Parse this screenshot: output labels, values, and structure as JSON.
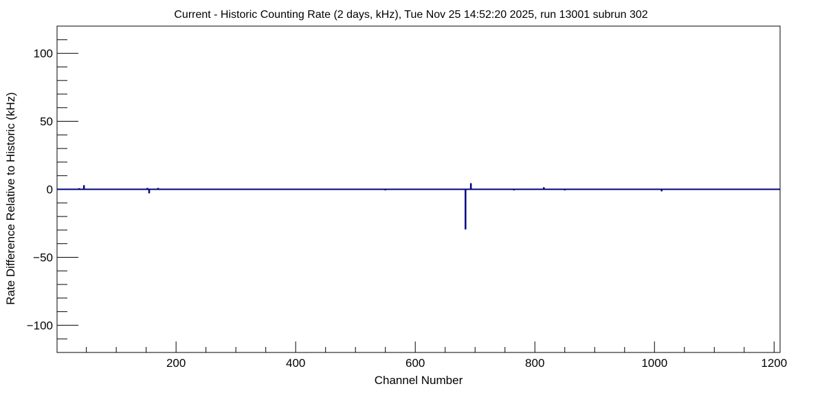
{
  "chart_data": {
    "type": "bar",
    "title": "Current - Historic Counting Rate (2 days, kHz), Tue Nov 25 14:52:20 2025, run 13001 subrun 302",
    "xlabel": "Channel Number",
    "ylabel": "Rate Difference Relative to Historic (kHz)",
    "xlim": [
      1,
      1210
    ],
    "ylim": [
      -120,
      120
    ],
    "x_ticks": [
      200,
      400,
      600,
      800,
      1000,
      1200
    ],
    "x_tick_labels": [
      "200",
      "400",
      "600",
      "800",
      "1000",
      "1200"
    ],
    "y_ticks": [
      -100,
      -50,
      0,
      50,
      100
    ],
    "y_tick_labels": [
      "−100",
      "−50",
      "0",
      "50",
      "100"
    ],
    "grid": false,
    "series": [
      {
        "color": "#000080",
        "x": [
          38,
          46,
          152,
          155,
          170,
          188,
          550,
          684,
          693,
          765,
          815,
          850,
          1012,
          1091
        ],
        "values": [
          0.8,
          3.0,
          1.0,
          -3.0,
          1.0,
          0.5,
          -0.8,
          -29.5,
          4.5,
          -0.8,
          1.5,
          -0.8,
          -1.5,
          0.5
        ]
      }
    ]
  }
}
